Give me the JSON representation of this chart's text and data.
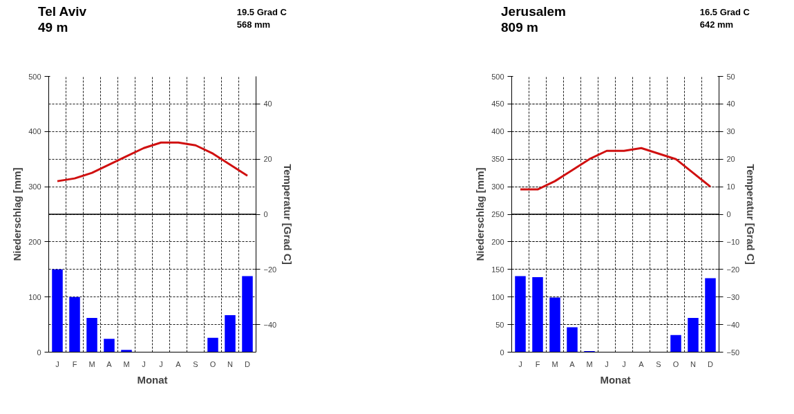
{
  "chart_data": [
    {
      "type": "bar",
      "title": "Tel Aviv",
      "subtitle": "49 m",
      "annotations": [
        "19.5 Grad C",
        "568 mm"
      ],
      "xlabel": "Monat",
      "ylabel": "Niederschlag [mm]",
      "y2label": "Temperatur [Grad C]",
      "categories": [
        "J",
        "F",
        "M",
        "A",
        "M",
        "J",
        "J",
        "A",
        "S",
        "O",
        "N",
        "D"
      ],
      "series": [
        {
          "color": "#0000ff",
          "values": [
            150,
            100,
            62,
            24,
            4,
            0,
            0,
            0,
            0,
            26,
            67,
            138
          ]
        },
        {
          "type": "line",
          "axis": "y2",
          "color": "#d01010",
          "values": [
            12,
            13,
            15,
            18,
            21,
            24,
            26,
            26,
            25,
            22,
            18,
            14
          ]
        }
      ],
      "ylim": [
        0,
        500
      ],
      "yticks": [
        0,
        100,
        200,
        300,
        400,
        500
      ],
      "y2lim": [
        -50,
        50
      ],
      "y2ticks": [
        -40,
        -20,
        0,
        20,
        40
      ],
      "ref_lines": [
        {
          "axis": "y2",
          "value": 0,
          "color": "#000000"
        }
      ],
      "grid": true,
      "line_style": "solid"
    },
    {
      "type": "bar",
      "title": "Jerusalem",
      "subtitle": "809 m",
      "annotations": [
        "16.5 Grad C",
        "642 mm"
      ],
      "xlabel": "Monat",
      "ylabel": "Niederschlag [mm]",
      "y2label": "Temperatur [Grad C]",
      "categories": [
        "J",
        "F",
        "M",
        "A",
        "M",
        "J",
        "J",
        "A",
        "S",
        "O",
        "N",
        "D"
      ],
      "series": [
        {
          "color": "#0000ff",
          "values": [
            138,
            136,
            99,
            45,
            2,
            0,
            0,
            0,
            0,
            31,
            62,
            134
          ]
        },
        {
          "type": "line",
          "axis": "y2",
          "color": "#d01010",
          "values": [
            9,
            9,
            12,
            16,
            20,
            23,
            23,
            24,
            22,
            20,
            15,
            10
          ]
        }
      ],
      "ylim": [
        0,
        500
      ],
      "yticks": [
        0,
        50,
        100,
        150,
        200,
        250,
        300,
        350,
        400,
        450,
        500
      ],
      "y2lim": [
        -50,
        50
      ],
      "y2ticks": [
        -50,
        -40,
        -30,
        -20,
        -10,
        0,
        10,
        20,
        30,
        40,
        50
      ],
      "ref_lines": [
        {
          "axis": "y2",
          "value": 0,
          "color": "#000000"
        }
      ],
      "grid": true,
      "line_style": "solid"
    }
  ]
}
